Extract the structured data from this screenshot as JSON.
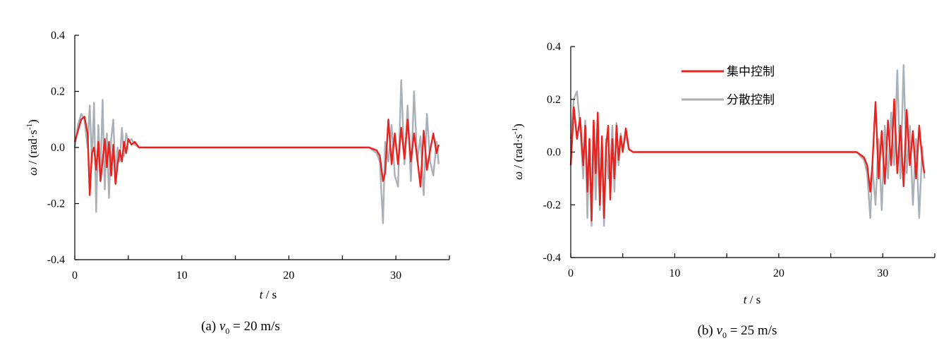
{
  "chart_data": [
    {
      "type": "line",
      "caption": {
        "prefix": "(a) ",
        "var": "v",
        "sub": "0",
        "rest": " = 20 m/s"
      },
      "xlabel": {
        "var": "t",
        "rest": " / s"
      },
      "ylabel": {
        "var": "ω",
        "rest": " / (rad·s",
        "sup": "-1",
        "tail": ")"
      },
      "xlim": [
        0,
        35
      ],
      "ylim": [
        -0.4,
        0.4
      ],
      "xticks": [
        0,
        10,
        20,
        30
      ],
      "yticks": [
        -0.4,
        -0.2,
        0.0,
        0.2,
        0.4
      ],
      "xtick_labels": [
        "0",
        "10",
        "20",
        "30"
      ],
      "ytick_labels": [
        "-0.4",
        "-0.2",
        "0.0",
        "0.2",
        "0.4"
      ],
      "legend": false,
      "series": [
        {
          "name": "集中控制",
          "color": "#e8231f",
          "x": [
            0,
            0.3,
            0.6,
            0.9,
            1.2,
            1.4,
            1.6,
            1.8,
            2.0,
            2.2,
            2.4,
            2.6,
            2.8,
            3.0,
            3.2,
            3.4,
            3.6,
            3.8,
            4.0,
            4.2,
            4.4,
            4.6,
            4.8,
            5.0,
            5.3,
            5.6,
            6.0,
            7,
            8,
            9,
            10,
            12,
            14,
            16,
            18,
            20,
            22,
            24,
            26,
            27.5,
            28.2,
            28.5,
            28.8,
            29.0,
            29.3,
            29.6,
            29.9,
            30.2,
            30.5,
            30.8,
            31.1,
            31.4,
            31.7,
            32.0,
            32.3,
            32.6,
            32.9,
            33.2,
            33.5,
            33.8,
            34.0
          ],
          "y": [
            0.02,
            0.06,
            0.1,
            0.11,
            0.05,
            -0.17,
            -0.02,
            0.0,
            -0.08,
            0.02,
            -0.12,
            -0.05,
            0.03,
            -0.07,
            0.02,
            -0.1,
            0.01,
            -0.13,
            -0.06,
            -0.01,
            -0.05,
            0.02,
            -0.02,
            0.03,
            0.01,
            0.02,
            0.0,
            0.0,
            0.0,
            0.0,
            0.0,
            0.0,
            0.0,
            0.0,
            0.0,
            0.0,
            0.0,
            0.0,
            0.0,
            0.0,
            -0.01,
            -0.03,
            -0.12,
            -0.09,
            0.1,
            -0.06,
            0.05,
            -0.06,
            0.07,
            -0.04,
            0.1,
            -0.05,
            0.05,
            -0.04,
            -0.14,
            0.06,
            -0.08,
            -0.01,
            0.05,
            -0.02,
            0.01
          ]
        },
        {
          "name": "分散控制",
          "color": "#a9b0b6",
          "x": [
            0,
            0.3,
            0.6,
            0.9,
            1.2,
            1.4,
            1.6,
            1.8,
            2.0,
            2.2,
            2.4,
            2.6,
            2.8,
            3.0,
            3.2,
            3.4,
            3.6,
            3.8,
            4.0,
            4.2,
            4.4,
            4.6,
            4.8,
            5.0,
            5.3,
            5.6,
            6.0,
            7,
            8,
            9,
            10,
            12,
            14,
            16,
            18,
            20,
            22,
            24,
            26,
            27.5,
            28.2,
            28.5,
            28.8,
            29.0,
            29.3,
            29.6,
            29.9,
            30.2,
            30.5,
            30.8,
            31.1,
            31.4,
            31.7,
            32.0,
            32.3,
            32.6,
            32.9,
            33.2,
            33.5,
            33.8,
            34.0
          ],
          "y": [
            0.0,
            0.08,
            0.12,
            0.1,
            0.0,
            0.15,
            -0.05,
            0.16,
            -0.23,
            0.08,
            -0.1,
            0.17,
            -0.15,
            0.05,
            -0.18,
            0.03,
            0.1,
            -0.11,
            0.0,
            -0.05,
            0.07,
            -0.03,
            0.05,
            0.02,
            0.03,
            0.01,
            0.0,
            0.0,
            0.0,
            0.0,
            0.0,
            0.0,
            0.0,
            0.0,
            0.0,
            0.0,
            0.0,
            0.0,
            0.0,
            0.0,
            -0.02,
            -0.05,
            -0.27,
            0.02,
            -0.05,
            0.08,
            -0.1,
            -0.14,
            0.24,
            -0.06,
            0.15,
            -0.12,
            0.2,
            -0.05,
            0.04,
            -0.17,
            0.12,
            -0.05,
            -0.1,
            0.02,
            -0.06
          ]
        }
      ]
    },
    {
      "type": "line",
      "caption": {
        "prefix": "(b) ",
        "var": "v",
        "sub": "0",
        "rest": " = 25 m/s"
      },
      "xlabel": {
        "var": "t",
        "rest": " / s"
      },
      "ylabel": {
        "var": "ω",
        "rest": " / (rad·s",
        "sup": "-1",
        "tail": ")"
      },
      "xlim": [
        0,
        35
      ],
      "ylim": [
        -0.4,
        0.4
      ],
      "xticks": [
        0,
        10,
        20,
        30
      ],
      "yticks": [
        -0.4,
        -0.2,
        0.0,
        0.2,
        0.4
      ],
      "xtick_labels": [
        "0",
        "10",
        "20",
        "30"
      ],
      "ytick_labels": [
        "-0.4",
        "-0.2",
        "0.0",
        "0.2",
        "0.4"
      ],
      "legend": true,
      "legend_position": "top-center",
      "series": [
        {
          "name": "集中控制",
          "color": "#e8231f",
          "x": [
            0,
            0.3,
            0.6,
            0.9,
            1.2,
            1.4,
            1.6,
            1.8,
            2.0,
            2.2,
            2.4,
            2.6,
            2.8,
            3.0,
            3.2,
            3.4,
            3.6,
            3.8,
            4.0,
            4.2,
            4.4,
            4.6,
            4.8,
            5.0,
            5.3,
            5.6,
            6.0,
            7,
            8,
            9,
            10,
            12,
            14,
            16,
            18,
            20,
            22,
            24,
            26,
            27.5,
            28.2,
            28.5,
            28.8,
            29.0,
            29.3,
            29.6,
            29.9,
            30.2,
            30.5,
            30.8,
            31.1,
            31.4,
            31.7,
            32.0,
            32.3,
            32.6,
            32.9,
            33.2,
            33.5,
            33.8,
            34.0
          ],
          "y": [
            -0.05,
            0.17,
            0.05,
            0.13,
            -0.05,
            0.1,
            -0.15,
            0.05,
            -0.26,
            0.12,
            -0.08,
            0.15,
            -0.2,
            0.06,
            -0.25,
            0.02,
            0.1,
            -0.18,
            0.05,
            -0.1,
            0.1,
            -0.03,
            0.06,
            0.0,
            0.09,
            0.01,
            0.0,
            0.0,
            0.0,
            0.0,
            0.0,
            0.0,
            0.0,
            0.0,
            0.0,
            0.0,
            0.0,
            0.0,
            0.0,
            0.0,
            -0.02,
            -0.05,
            -0.15,
            -0.05,
            0.19,
            -0.1,
            0.08,
            -0.12,
            0.12,
            -0.05,
            0.2,
            -0.08,
            0.1,
            -0.13,
            0.16,
            -0.05,
            0.08,
            -0.1,
            0.1,
            -0.03,
            -0.08
          ]
        },
        {
          "name": "分散控制",
          "color": "#a9b0b6",
          "x": [
            0,
            0.3,
            0.6,
            0.9,
            1.2,
            1.4,
            1.6,
            1.8,
            2.0,
            2.2,
            2.4,
            2.6,
            2.8,
            3.0,
            3.2,
            3.4,
            3.6,
            3.8,
            4.0,
            4.2,
            4.4,
            4.6,
            4.8,
            5.0,
            5.3,
            5.6,
            6.0,
            7,
            8,
            9,
            10,
            12,
            14,
            16,
            18,
            20,
            22,
            24,
            26,
            27.5,
            28.2,
            28.5,
            28.8,
            29.0,
            29.3,
            29.6,
            29.9,
            30.2,
            30.5,
            30.8,
            31.1,
            31.4,
            31.7,
            32.0,
            32.3,
            32.6,
            32.9,
            33.2,
            33.5,
            33.8,
            34.0
          ],
          "y": [
            0.05,
            0.2,
            0.23,
            0.1,
            -0.1,
            0.12,
            -0.25,
            0.05,
            -0.28,
            0.1,
            -0.18,
            0.05,
            -0.22,
            0.02,
            -0.28,
            0.05,
            -0.1,
            -0.05,
            0.1,
            -0.15,
            0.11,
            -0.05,
            0.07,
            0.01,
            0.06,
            0.01,
            0.0,
            0.0,
            0.0,
            0.0,
            0.0,
            0.0,
            0.0,
            0.0,
            0.0,
            0.0,
            0.0,
            0.0,
            0.0,
            0.0,
            -0.03,
            -0.08,
            -0.25,
            -0.05,
            -0.2,
            0.05,
            -0.22,
            0.1,
            -0.1,
            0.15,
            -0.05,
            0.31,
            -0.1,
            0.33,
            -0.08,
            0.1,
            -0.2,
            0.05,
            -0.25,
            0.02,
            -0.1
          ]
        }
      ]
    }
  ]
}
